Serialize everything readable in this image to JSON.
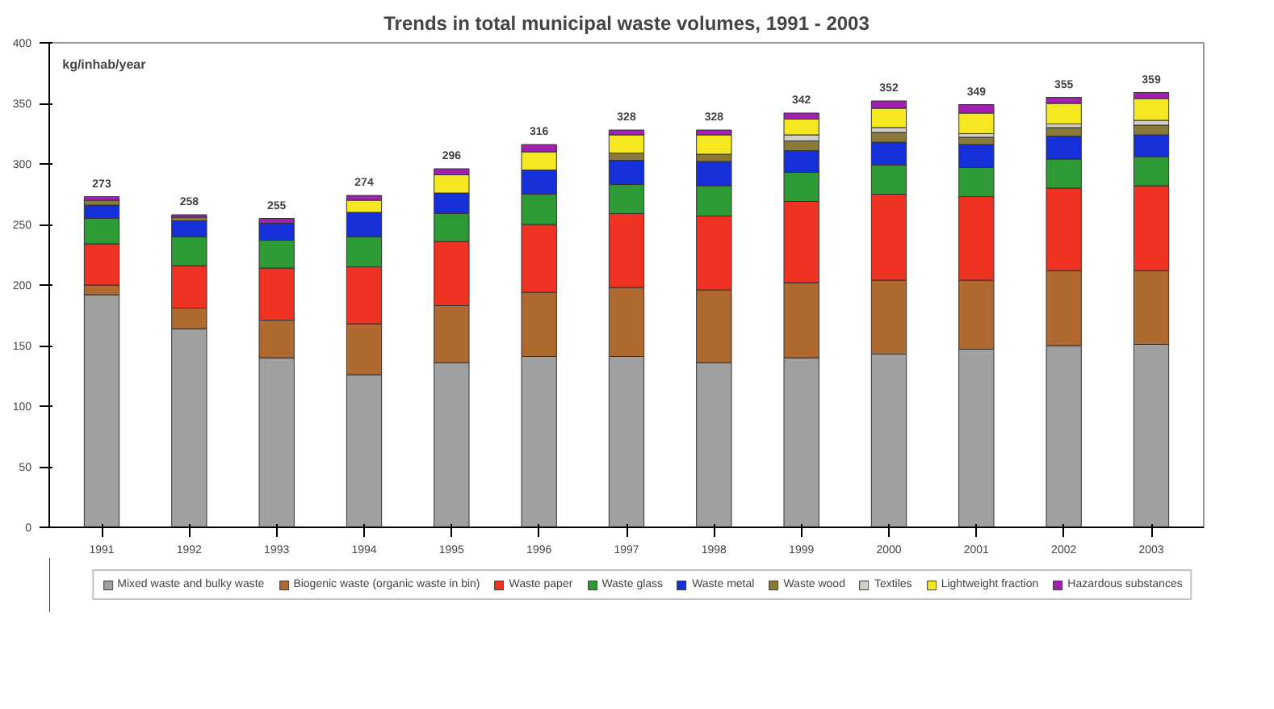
{
  "chart_data": {
    "type": "bar",
    "stacked": true,
    "title": "Trends in total municipal waste volumes, 1991 - 2003",
    "ylabel": "kg/inhab/year",
    "categories": [
      "1991",
      "1992",
      "1993",
      "1994",
      "1995",
      "1996",
      "1997",
      "1998",
      "1999",
      "2000",
      "2001",
      "2002",
      "2003"
    ],
    "ylim": [
      0,
      400
    ],
    "yticks": [
      0,
      50,
      100,
      150,
      200,
      250,
      300,
      350,
      400
    ],
    "grid": false,
    "legend": "bottom",
    "series": [
      {
        "name": "Mixed waste and bulky waste",
        "color": "#a0a0a0",
        "values": [
          192,
          164,
          140,
          126,
          136,
          141,
          141,
          136,
          140,
          143,
          147,
          150,
          151
        ]
      },
      {
        "name": "Biogenic waste (organic waste in bin)",
        "color": "#b06a30",
        "values": [
          8,
          17,
          31,
          42,
          47,
          53,
          57,
          60,
          62,
          61,
          57,
          62,
          61
        ]
      },
      {
        "name": "Waste paper",
        "color": "#ee3322",
        "values": [
          34,
          35,
          43,
          47,
          53,
          56,
          61,
          61,
          67,
          71,
          69,
          68,
          70
        ]
      },
      {
        "name": "Waste glass",
        "color": "#2e9a35",
        "values": [
          21,
          24,
          23,
          25,
          23,
          25,
          24,
          25,
          24,
          24,
          24,
          24,
          24
        ]
      },
      {
        "name": "Waste metal",
        "color": "#1530d8",
        "values": [
          11,
          13,
          14,
          20,
          17,
          20,
          20,
          20,
          18,
          19,
          19,
          19,
          18
        ]
      },
      {
        "name": "Waste wood",
        "color": "#8a7a3a",
        "values": [
          4,
          3,
          0,
          0,
          0,
          0,
          6,
          6,
          8,
          8,
          6,
          7,
          8
        ]
      },
      {
        "name": "Textiles",
        "color": "#d0d0c8",
        "values": [
          0,
          0,
          0,
          0,
          0,
          0,
          0,
          0,
          5,
          4,
          3,
          3,
          4
        ]
      },
      {
        "name": "Lightweight fraction",
        "color": "#f5e820",
        "values": [
          0,
          0,
          0,
          10,
          15,
          15,
          15,
          16,
          13,
          16,
          17,
          17,
          18
        ]
      },
      {
        "name": "Hazardous substances",
        "color": "#a020b0",
        "values": [
          3,
          2,
          4,
          4,
          5,
          6,
          4,
          4,
          5,
          6,
          7,
          5,
          5
        ]
      }
    ],
    "totals": [
      "273",
      "258",
      "255",
      "274",
      "296",
      "316",
      "328",
      "328",
      "342",
      "352",
      "349",
      "355",
      "359"
    ]
  }
}
